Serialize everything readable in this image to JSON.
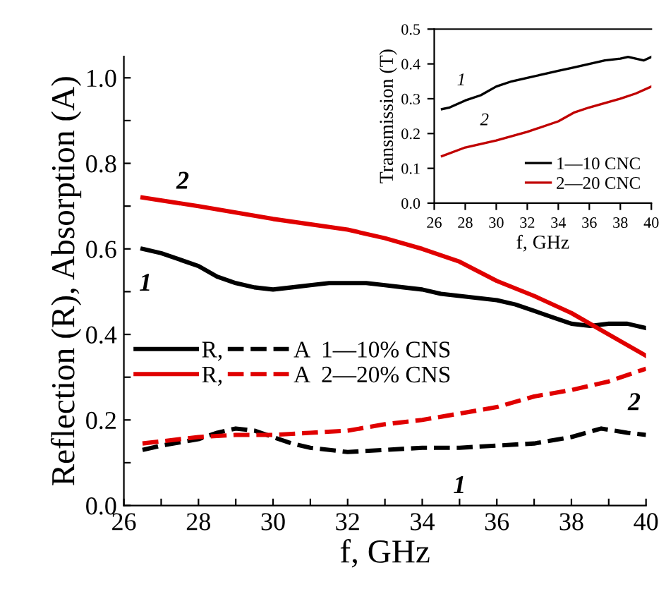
{
  "chart_data": [
    {
      "type": "line",
      "xlabel": "f, GHz",
      "ylabel": "Reflection (R), Absorption (A)",
      "xlim": [
        26,
        40
      ],
      "ylim": [
        0,
        1.05
      ],
      "xticks": [
        26,
        {
          "value": 27,
          "label": null
        },
        28,
        {
          "value": 29,
          "label": null
        },
        30,
        {
          "value": 31,
          "label": null
        },
        32,
        {
          "value": 33,
          "label": null
        },
        34,
        {
          "value": 35,
          "label": null
        },
        36,
        {
          "value": 37,
          "label": null
        },
        38,
        {
          "value": 39,
          "label": null
        },
        40
      ],
      "yticks": [
        {
          "value": 0,
          "label": "0.0"
        },
        {
          "value": 0.1,
          "label": null
        },
        {
          "value": 0.2,
          "label": "0.2"
        },
        {
          "value": 0.3,
          "label": null
        },
        {
          "value": 0.4,
          "label": "0.4"
        },
        {
          "value": 0.5,
          "label": null
        },
        {
          "value": 0.6,
          "label": "0.6"
        },
        {
          "value": 0.7,
          "label": null
        },
        {
          "value": 0.8,
          "label": "0.8"
        },
        {
          "value": 0.9,
          "label": null
        },
        {
          "value": 1.0,
          "label": "1.0"
        }
      ],
      "grid": false,
      "legend": "left",
      "marker": "none",
      "series": [
        {
          "name": "R,",
          "color": "#000000",
          "line_style": "solid",
          "x": [
            26.5,
            27,
            27.5,
            28,
            28.5,
            29,
            29.5,
            30,
            30.5,
            31,
            31.5,
            32,
            32.5,
            33,
            33.5,
            34,
            34.5,
            35,
            35.5,
            36,
            36.5,
            37,
            37.5,
            38,
            38.5,
            39,
            39.5,
            40
          ],
          "values": [
            0.6,
            0.59,
            0.575,
            0.56,
            0.535,
            0.52,
            0.51,
            0.505,
            0.51,
            0.515,
            0.52,
            0.52,
            0.52,
            0.515,
            0.51,
            0.505,
            0.495,
            0.49,
            0.485,
            0.48,
            0.47,
            0.455,
            0.44,
            0.425,
            0.42,
            0.425,
            0.425,
            0.415
          ]
        },
        {
          "name": "A  1—10% CNS",
          "color": "#000000",
          "line_style": "dashed",
          "x": [
            26.5,
            27,
            28,
            28.5,
            29,
            29.5,
            30,
            30.5,
            31,
            32,
            33,
            34,
            35,
            36,
            37,
            38,
            38.8,
            39.5,
            40
          ],
          "values": [
            0.13,
            0.14,
            0.155,
            0.17,
            0.18,
            0.175,
            0.16,
            0.145,
            0.135,
            0.125,
            0.13,
            0.135,
            0.135,
            0.14,
            0.145,
            0.16,
            0.18,
            0.17,
            0.165
          ]
        },
        {
          "name": "R,",
          "color": "#e00000",
          "line_style": "solid",
          "x": [
            26.5,
            28,
            30,
            32,
            33,
            34,
            35,
            36,
            37,
            38,
            39,
            40
          ],
          "values": [
            0.72,
            0.7,
            0.67,
            0.645,
            0.625,
            0.6,
            0.57,
            0.525,
            0.49,
            0.45,
            0.4,
            0.35
          ]
        },
        {
          "name": "A  2—20% CNS",
          "color": "#e00000",
          "line_style": "dashed",
          "x": [
            26.5,
            27,
            28,
            29,
            30,
            31,
            32,
            33,
            34,
            35,
            36,
            37,
            38,
            39,
            40
          ],
          "values": [
            0.145,
            0.15,
            0.16,
            0.165,
            0.165,
            0.17,
            0.175,
            0.19,
            0.2,
            0.215,
            0.23,
            0.255,
            0.27,
            0.29,
            0.32
          ]
        }
      ],
      "annotations": [
        {
          "text": "1",
          "x": 27,
          "y": 0.59
        },
        {
          "text": "2",
          "x": 28,
          "y": 0.7
        },
        {
          "text": "1",
          "x": 35,
          "y": 0.135
        },
        {
          "text": "2",
          "x": 40,
          "y": 0.32
        }
      ]
    },
    {
      "type": "line",
      "xlabel": "f, GHz",
      "ylabel": "Transmission (T)",
      "xlim": [
        26,
        40
      ],
      "ylim": [
        0,
        0.5
      ],
      "xticks": [
        26,
        28,
        30,
        32,
        34,
        36,
        38,
        40
      ],
      "yticks": [
        {
          "value": 0,
          "label": "0.0"
        },
        0.1,
        0.2,
        0.3,
        0.4,
        0.5
      ],
      "grid": false,
      "legend": "bottom right",
      "marker": "none",
      "series": [
        {
          "name": "1—10 CNC",
          "color": "#000000",
          "line_style": "solid",
          "x": [
            26.5,
            27,
            28,
            29,
            30,
            31,
            32,
            33,
            34,
            35,
            36,
            37,
            38,
            38.5,
            39,
            39.5,
            40
          ],
          "values": [
            0.27,
            0.275,
            0.295,
            0.31,
            0.335,
            0.35,
            0.36,
            0.37,
            0.38,
            0.39,
            0.4,
            0.41,
            0.415,
            0.42,
            0.415,
            0.41,
            0.42
          ]
        },
        {
          "name": "2—20 CNC",
          "color": "#c00000",
          "line_style": "solid",
          "x": [
            26.5,
            28,
            30,
            32,
            34,
            35,
            36,
            38,
            39,
            40
          ],
          "values": [
            0.135,
            0.16,
            0.18,
            0.205,
            0.235,
            0.26,
            0.275,
            0.3,
            0.315,
            0.335
          ]
        }
      ],
      "annotations": [
        {
          "text": "1",
          "x": 28,
          "y": 0.295
        },
        {
          "text": "2",
          "x": 30,
          "y": 0.18
        }
      ]
    }
  ]
}
